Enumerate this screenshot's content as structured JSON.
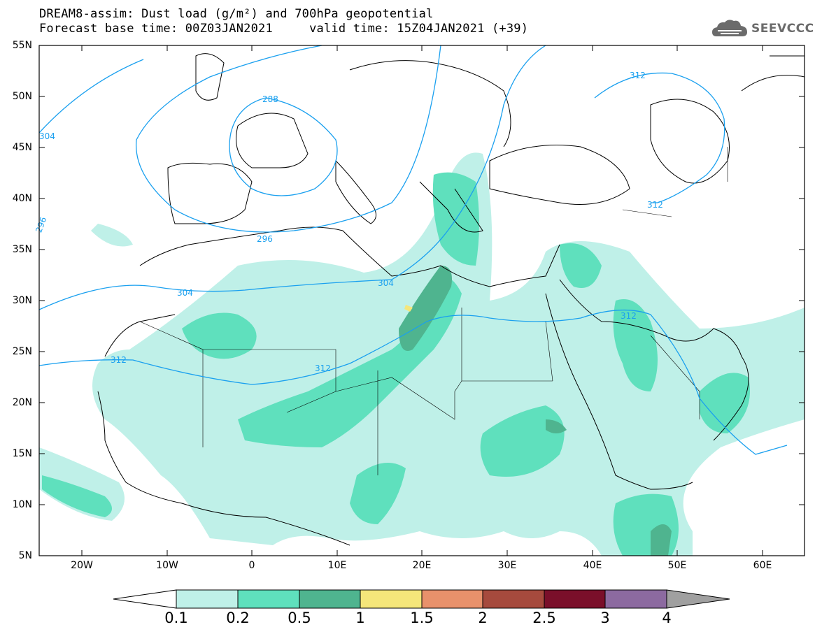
{
  "title_line1": "DREAM8-assim: Dust load (g/m²) and 700hPa geopotential",
  "title_line2": "Forecast base time: 00Z03JAN2021     valid time: 15Z04JAN2021 (+39)",
  "logo_text": "SEEVCCC",
  "lat_labels": [
    "55N",
    "50N",
    "45N",
    "40N",
    "35N",
    "30N",
    "25N",
    "20N",
    "15N",
    "10N",
    "5N"
  ],
  "lon_labels": [
    "20W",
    "10W",
    "0",
    "10E",
    "20E",
    "30E",
    "40E",
    "50E",
    "60E"
  ],
  "contour_labels": [
    "288",
    "296",
    "304",
    "304",
    "312",
    "312",
    "312",
    "312",
    "312",
    "304",
    "296"
  ],
  "colorbar": {
    "ticks": [
      "0.1",
      "0.2",
      "0.5",
      "1",
      "1.5",
      "2",
      "2.5",
      "3",
      "4"
    ],
    "colors": [
      "#ffffff",
      "#bff0e8",
      "#5fe0bd",
      "#4fb48f",
      "#f5e67a",
      "#e8916b",
      "#a64a3d",
      "#7a0f2a",
      "#8c6aa0",
      "#a0a0a0"
    ]
  },
  "colors": {
    "contour": "#1aa0ef",
    "coast": "#000000"
  }
}
